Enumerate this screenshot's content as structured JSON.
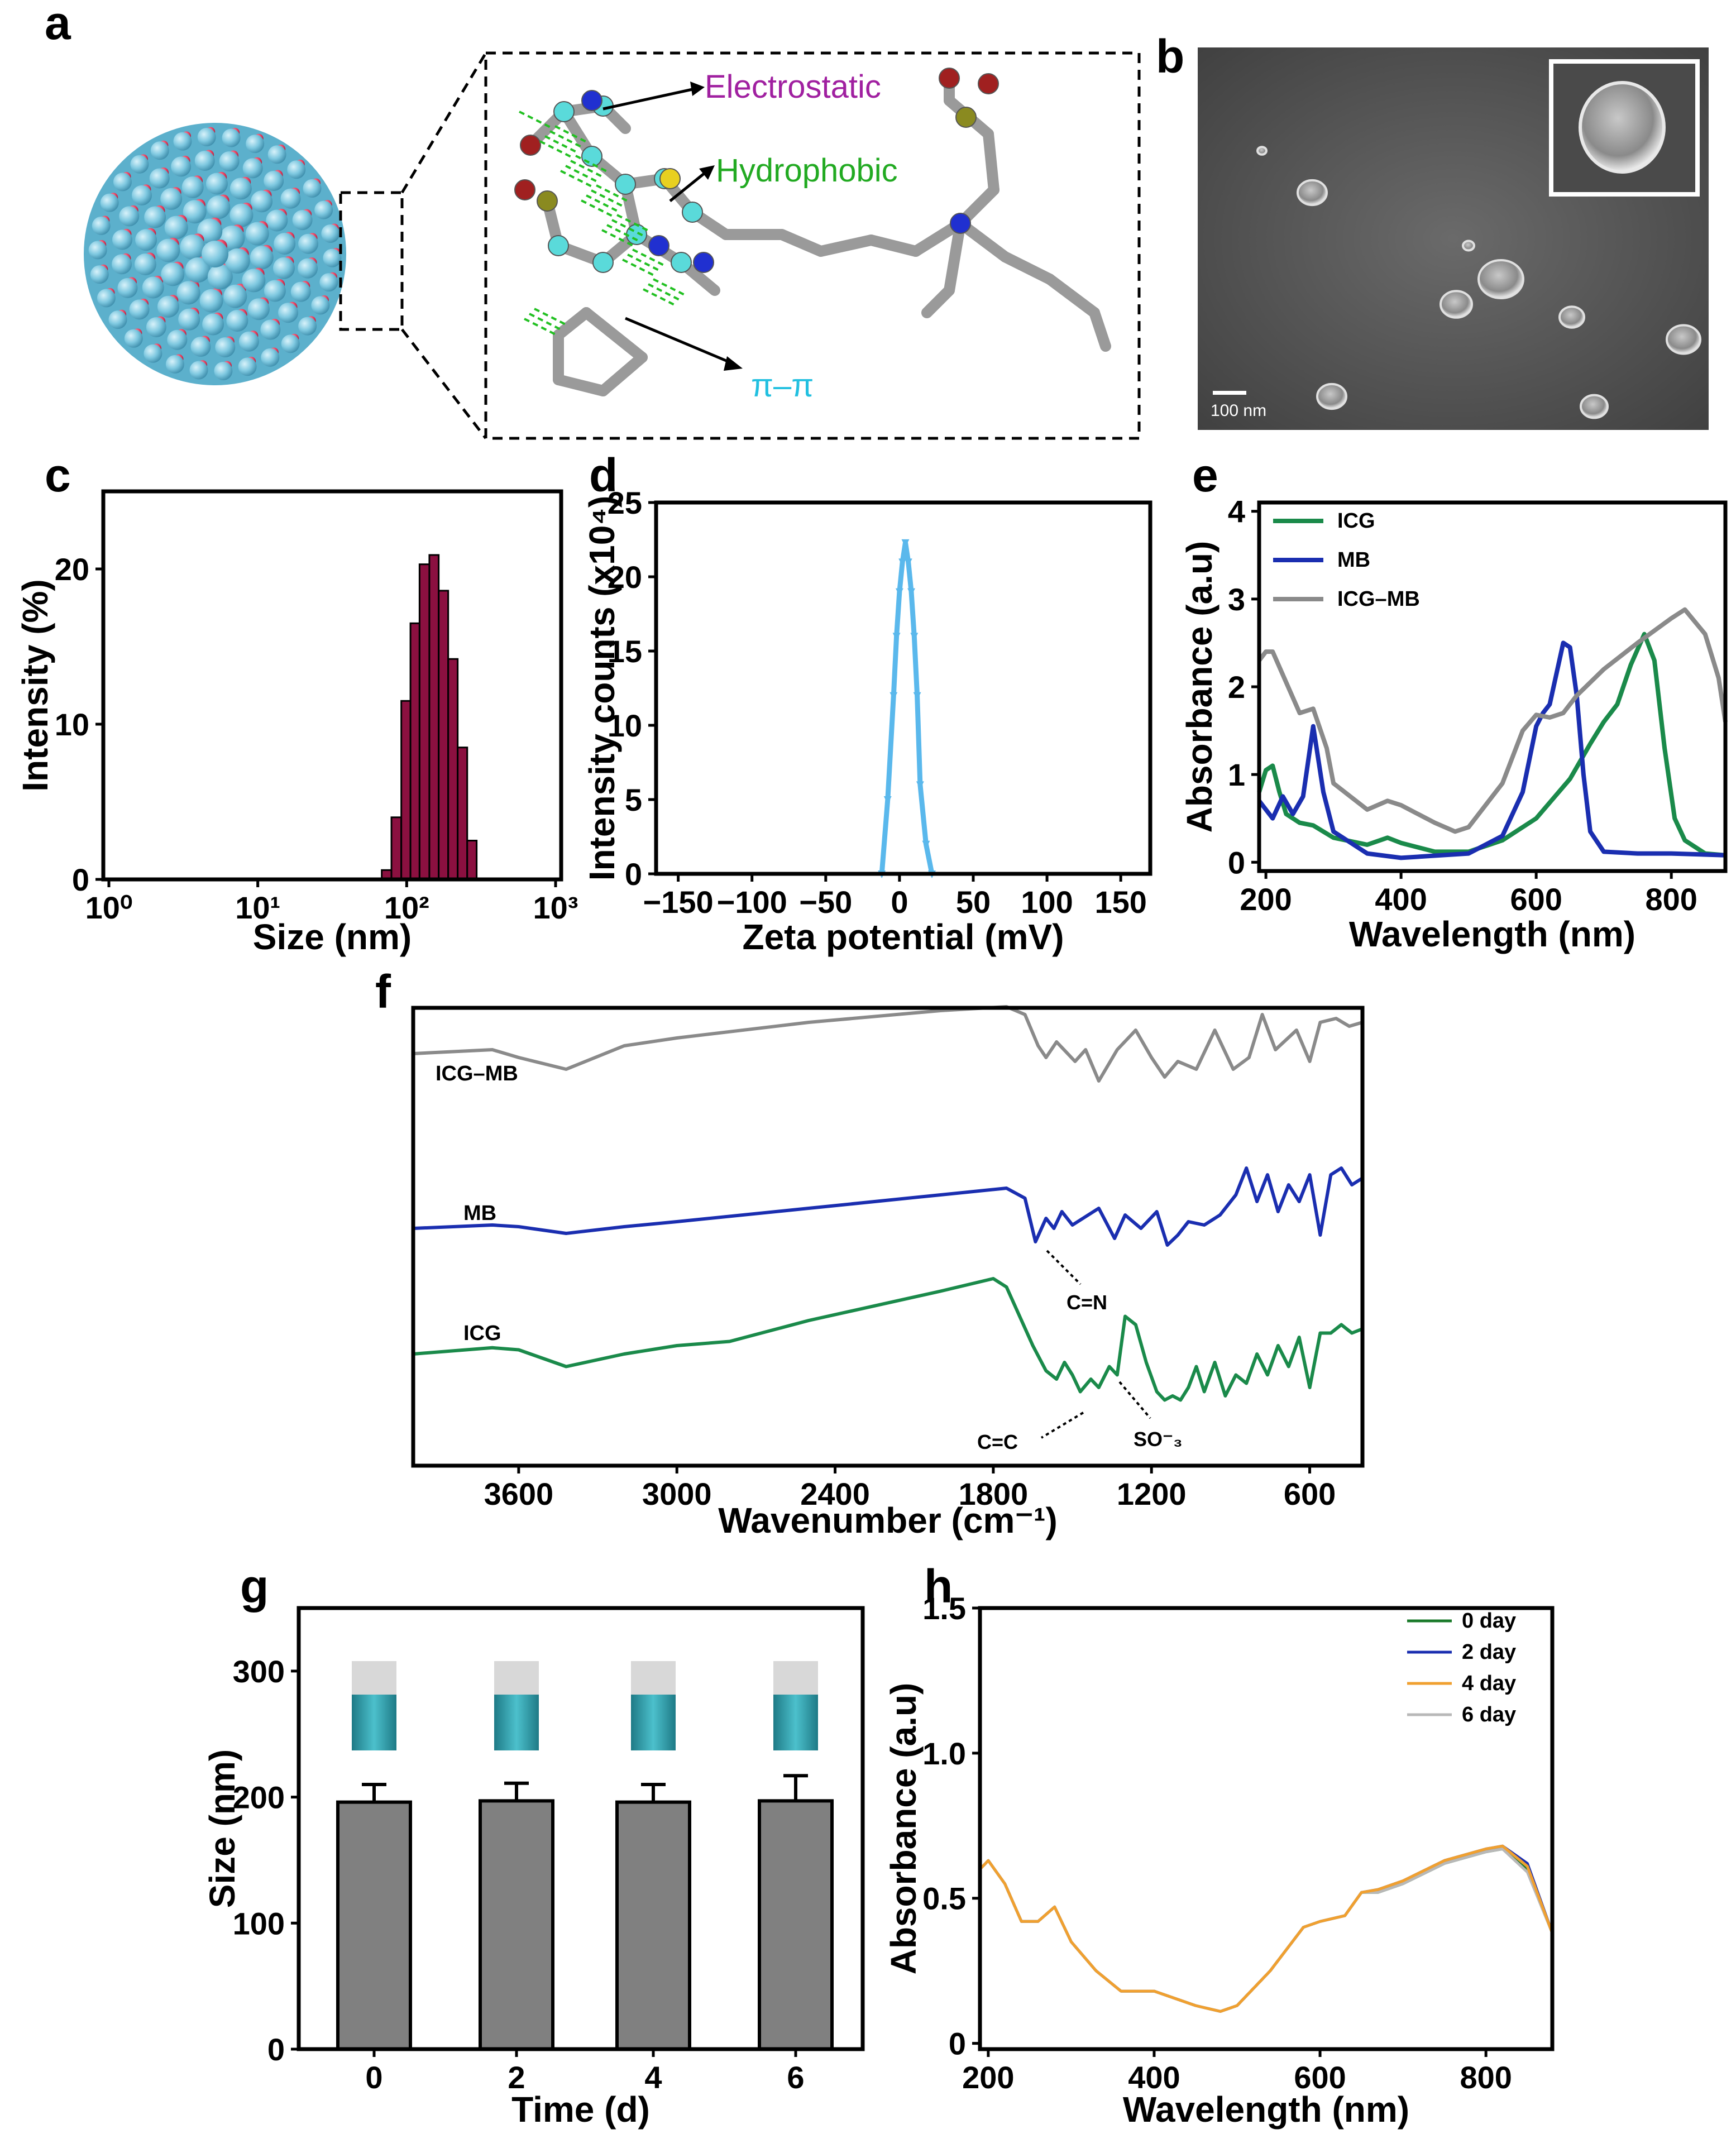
{
  "colors": {
    "icg": "#1a8a4a",
    "mb": "#1a2eb0",
    "icgmb": "#8a8a8a",
    "bar_c": "#8b1040",
    "line_d": "#5ab8ec",
    "bar_g": "#808080",
    "d0": "#1a7a2a",
    "d2": "#1a2eb0",
    "d4": "#f0a030",
    "d6": "#b8b8b8",
    "purple": "#a020a0",
    "green": "#22aa22",
    "cyan": "#22c0e0"
  },
  "panel_a": {
    "letter": "a",
    "label_electrostatic": "Electrostatic",
    "label_hydrophobic": "Hydrophobic",
    "label_pipi": "π–π"
  },
  "panel_b": {
    "letter": "b",
    "scalebar": "100 nm"
  },
  "chart_data": [
    {
      "panel": "c",
      "type": "bar",
      "xlabel": "Size (nm)",
      "ylabel": "Intensity (%)",
      "xscale": "log",
      "xlim": [
        1,
        1000
      ],
      "ylim": [
        0,
        25
      ],
      "xticks": [
        "10⁰",
        "10¹",
        "10²",
        "10³"
      ],
      "yticks": [
        "0",
        "10",
        "20"
      ],
      "bins": [
        {
          "left": 68,
          "right": 79,
          "value": 0.6
        },
        {
          "left": 79,
          "right": 92,
          "value": 4.0
        },
        {
          "left": 92,
          "right": 106,
          "value": 11.5
        },
        {
          "left": 106,
          "right": 122,
          "value": 16.5
        },
        {
          "left": 122,
          "right": 142,
          "value": 20.3
        },
        {
          "left": 142,
          "right": 164,
          "value": 20.9
        },
        {
          "left": 164,
          "right": 190,
          "value": 18.6
        },
        {
          "left": 190,
          "right": 220,
          "value": 14.2
        },
        {
          "left": 220,
          "right": 255,
          "value": 8.5
        },
        {
          "left": 255,
          "right": 295,
          "value": 2.5
        }
      ]
    },
    {
      "panel": "d",
      "type": "line",
      "xlabel": "Zeta potential (mV)",
      "ylabel": "Intensity counts (x10⁴)",
      "xlim": [
        -165,
        170
      ],
      "ylim": [
        0,
        25
      ],
      "xticks": [
        "−150",
        "−100",
        "−50",
        "0",
        "50",
        "100",
        "150"
      ],
      "xtick_values": [
        -150,
        -100,
        -50,
        0,
        50,
        100,
        150
      ],
      "yticks": [
        "0",
        "5",
        "10",
        "15",
        "20",
        "25"
      ],
      "x": [
        -12,
        -8,
        -4,
        -2,
        0,
        2,
        4,
        6,
        8,
        10,
        12,
        14,
        18,
        22
      ],
      "y": [
        0,
        5,
        12,
        16,
        19,
        21,
        22.3,
        21,
        19,
        16,
        12,
        6,
        2,
        0
      ]
    },
    {
      "panel": "e",
      "type": "line",
      "xlabel": "Wavelength (nm)",
      "ylabel": "Absorbance (a.u)",
      "xlim": [
        190,
        880
      ],
      "ylim": [
        -0.1,
        4.1
      ],
      "xticks": [
        "200",
        "400",
        "600",
        "800"
      ],
      "yticks": [
        "0",
        "1",
        "2",
        "3",
        "4"
      ],
      "legend_position": "top-left",
      "series": [
        {
          "name": "ICG",
          "x": [
            190,
            200,
            210,
            220,
            230,
            250,
            270,
            300,
            350,
            380,
            400,
            450,
            500,
            550,
            600,
            650,
            680,
            700,
            720,
            740,
            760,
            775,
            790,
            805,
            820,
            850,
            880
          ],
          "y": [
            0.8,
            1.05,
            1.1,
            0.8,
            0.55,
            0.45,
            0.42,
            0.28,
            0.2,
            0.28,
            0.22,
            0.12,
            0.12,
            0.25,
            0.5,
            0.95,
            1.35,
            1.6,
            1.8,
            2.25,
            2.6,
            2.3,
            1.3,
            0.5,
            0.25,
            0.1,
            0.08
          ]
        },
        {
          "name": "MB",
          "x": [
            190,
            210,
            225,
            240,
            255,
            270,
            285,
            300,
            350,
            400,
            500,
            550,
            580,
            600,
            610,
            620,
            640,
            650,
            660,
            670,
            680,
            700,
            750,
            800,
            880
          ],
          "y": [
            0.7,
            0.5,
            0.75,
            0.55,
            0.75,
            1.55,
            0.8,
            0.35,
            0.1,
            0.05,
            0.1,
            0.3,
            0.8,
            1.55,
            1.7,
            1.8,
            2.5,
            2.45,
            1.9,
            1.0,
            0.35,
            0.12,
            0.1,
            0.1,
            0.08
          ]
        },
        {
          "name": "ICG–MB",
          "x": [
            190,
            200,
            210,
            230,
            250,
            270,
            290,
            300,
            350,
            380,
            400,
            450,
            480,
            500,
            550,
            580,
            600,
            620,
            640,
            660,
            700,
            750,
            800,
            820,
            850,
            870,
            880
          ],
          "y": [
            2.3,
            2.4,
            2.4,
            2.05,
            1.7,
            1.75,
            1.3,
            0.9,
            0.6,
            0.7,
            0.65,
            0.45,
            0.35,
            0.4,
            0.9,
            1.5,
            1.68,
            1.65,
            1.7,
            1.9,
            2.2,
            2.5,
            2.78,
            2.88,
            2.6,
            2.1,
            1.6
          ]
        }
      ]
    },
    {
      "panel": "f",
      "type": "line",
      "xlabel": "Wavenumber (cm⁻¹)",
      "ylabel": "",
      "xlim": [
        4000,
        400
      ],
      "xticks": [
        "3600",
        "3000",
        "2400",
        "1800",
        "1200",
        "600"
      ],
      "xtick_values": [
        3600,
        3000,
        2400,
        1800,
        1200,
        600
      ],
      "yticks": [],
      "annotations": [
        "C=N",
        "C=C",
        "SO⁻₃"
      ],
      "series": [
        {
          "name": "ICG–MB",
          "x": [
            4000,
            3700,
            3600,
            3420,
            3200,
            3000,
            2500,
            2000,
            1750,
            1680,
            1630,
            1600,
            1560,
            1490,
            1450,
            1400,
            1330,
            1260,
            1200,
            1150,
            1100,
            1030,
            960,
            890,
            830,
            780,
            730,
            650,
            600,
            560,
            500,
            450,
            400
          ],
          "y": [
            0.4,
            0.5,
            0.3,
            0,
            0.6,
            0.8,
            1.2,
            1.5,
            1.6,
            1.4,
            0.6,
            0.3,
            0.7,
            0.2,
            0.5,
            -0.3,
            0.5,
            1.0,
            0.3,
            -0.2,
            0.2,
            0.0,
            1.0,
            0.0,
            0.3,
            1.4,
            0.5,
            1.0,
            0.2,
            1.2,
            1.3,
            1.1,
            1.2
          ]
        },
        {
          "name": "MB",
          "x": [
            4000,
            3700,
            3600,
            3420,
            3200,
            3000,
            2500,
            2000,
            1750,
            1680,
            1640,
            1600,
            1570,
            1540,
            1500,
            1440,
            1400,
            1340,
            1300,
            1240,
            1180,
            1140,
            1100,
            1060,
            1000,
            940,
            880,
            840,
            800,
            760,
            720,
            680,
            640,
            600,
            560,
            520,
            480,
            440,
            400
          ],
          "y": [
            0,
            0.1,
            0.05,
            -0.15,
            0.05,
            0.2,
            0.6,
            1.0,
            1.2,
            0.9,
            -0.4,
            0.3,
            0.0,
            0.5,
            0.1,
            0.4,
            0.6,
            -0.3,
            0.4,
            0.0,
            0.5,
            -0.5,
            -0.2,
            0.2,
            0.1,
            0.4,
            1.0,
            1.8,
            0.8,
            1.6,
            0.5,
            1.3,
            0.8,
            1.6,
            -0.2,
            1.6,
            1.8,
            1.3,
            1.5
          ]
        },
        {
          "name": "ICG",
          "x": [
            4000,
            3800,
            3700,
            3600,
            3420,
            3200,
            3000,
            2800,
            2500,
            2000,
            1800,
            1750,
            1700,
            1650,
            1600,
            1560,
            1530,
            1500,
            1470,
            1430,
            1400,
            1360,
            1330,
            1300,
            1260,
            1220,
            1180,
            1150,
            1120,
            1090,
            1060,
            1030,
            1000,
            960,
            920,
            880,
            840,
            800,
            760,
            720,
            680,
            640,
            600,
            560,
            520,
            480,
            440,
            400
          ],
          "y": [
            0,
            0.1,
            0.15,
            0.1,
            -0.3,
            0.0,
            0.2,
            0.3,
            0.8,
            1.5,
            1.8,
            1.6,
            0.9,
            0.2,
            -0.4,
            -0.6,
            -0.2,
            -0.5,
            -0.9,
            -0.6,
            -0.8,
            -0.3,
            -0.5,
            0.9,
            0.7,
            -0.2,
            -0.9,
            -1.1,
            -1.0,
            -1.1,
            -0.8,
            -0.3,
            -0.9,
            -0.2,
            -1.0,
            -0.5,
            -0.7,
            0.0,
            -0.5,
            0.2,
            -0.3,
            0.4,
            -0.8,
            0.5,
            0.5,
            0.7,
            0.5,
            0.6
          ]
        }
      ]
    },
    {
      "panel": "g",
      "type": "bar",
      "xlabel": "Time (d)",
      "ylabel": "Size (nm)",
      "ylim": [
        0,
        350
      ],
      "yticks": [
        "0",
        "100",
        "200",
        "300"
      ],
      "categories": [
        "0",
        "2",
        "4",
        "6"
      ],
      "values": [
        196,
        197,
        196,
        197
      ],
      "errors": [
        14,
        14,
        14,
        20
      ]
    },
    {
      "panel": "h",
      "type": "line",
      "xlabel": "Wavelength (nm)",
      "ylabel": "Absorbance (a.u)",
      "xlim": [
        190,
        880
      ],
      "ylim": [
        -0.02,
        1.5
      ],
      "xticks": [
        "200",
        "400",
        "600",
        "800"
      ],
      "yticks": [
        "0",
        "0.5",
        "1.0",
        "1.5"
      ],
      "legend_position": "top-right",
      "series": [
        {
          "name": "0 day",
          "x": [
            190,
            200,
            220,
            240,
            260,
            280,
            300,
            330,
            360,
            400,
            450,
            480,
            500,
            540,
            580,
            600,
            630,
            650,
            670,
            700,
            750,
            800,
            820,
            850,
            880
          ],
          "y": [
            0.6,
            0.63,
            0.55,
            0.42,
            0.42,
            0.47,
            0.35,
            0.25,
            0.18,
            0.18,
            0.13,
            0.11,
            0.13,
            0.25,
            0.4,
            0.42,
            0.44,
            0.52,
            0.52,
            0.55,
            0.62,
            0.66,
            0.67,
            0.6,
            0.38
          ]
        },
        {
          "name": "2 day",
          "x": [
            190,
            200,
            220,
            240,
            260,
            280,
            300,
            330,
            360,
            400,
            450,
            480,
            500,
            540,
            580,
            600,
            630,
            650,
            670,
            700,
            750,
            800,
            820,
            850,
            880
          ],
          "y": [
            0.6,
            0.63,
            0.55,
            0.42,
            0.42,
            0.47,
            0.35,
            0.25,
            0.18,
            0.18,
            0.13,
            0.11,
            0.13,
            0.25,
            0.4,
            0.42,
            0.44,
            0.52,
            0.53,
            0.56,
            0.63,
            0.67,
            0.68,
            0.62,
            0.38
          ]
        },
        {
          "name": "4 day",
          "x": [
            190,
            200,
            220,
            240,
            260,
            280,
            300,
            330,
            360,
            400,
            450,
            480,
            500,
            540,
            580,
            600,
            630,
            650,
            670,
            700,
            750,
            800,
            820,
            850,
            880
          ],
          "y": [
            0.6,
            0.63,
            0.55,
            0.42,
            0.42,
            0.47,
            0.35,
            0.25,
            0.18,
            0.18,
            0.13,
            0.11,
            0.13,
            0.25,
            0.4,
            0.42,
            0.44,
            0.52,
            0.53,
            0.56,
            0.63,
            0.67,
            0.68,
            0.61,
            0.38
          ]
        },
        {
          "name": "6 day",
          "x": [
            190,
            200,
            220,
            240,
            260,
            280,
            300,
            330,
            360,
            400,
            450,
            480,
            500,
            540,
            580,
            600,
            630,
            650,
            670,
            700,
            750,
            800,
            820,
            850,
            880
          ],
          "y": [
            0.6,
            0.63,
            0.55,
            0.42,
            0.42,
            0.47,
            0.35,
            0.25,
            0.18,
            0.18,
            0.13,
            0.11,
            0.13,
            0.25,
            0.4,
            0.42,
            0.44,
            0.52,
            0.52,
            0.55,
            0.62,
            0.66,
            0.67,
            0.59,
            0.38
          ]
        }
      ]
    }
  ]
}
